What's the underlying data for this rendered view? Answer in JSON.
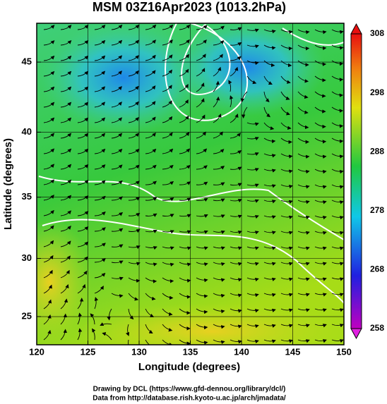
{
  "title": "MSM 03Z16Apr2023 (1013.2hPa)",
  "map": {
    "projection": "mercator",
    "xlabel": "Longitude (degrees)",
    "ylabel": "Latitude  (degrees)",
    "xlim": [
      120,
      150
    ],
    "ylim": [
      22.5,
      47.6
    ],
    "xticks": [
      120,
      125,
      130,
      135,
      140,
      145,
      150
    ],
    "yticks": [
      25,
      30,
      35,
      40,
      45
    ],
    "grid": true
  },
  "colorbar": {
    "clim": [
      258,
      308
    ],
    "ticks": [
      258,
      268,
      278,
      288,
      298,
      308
    ]
  },
  "credits": [
    "Drawing by DCL (https://www.gfd-dennou.org/library/dcl/)",
    "Data from http://database.rish.kyoto-u.ac.jp/arch/jmadata/"
  ]
}
